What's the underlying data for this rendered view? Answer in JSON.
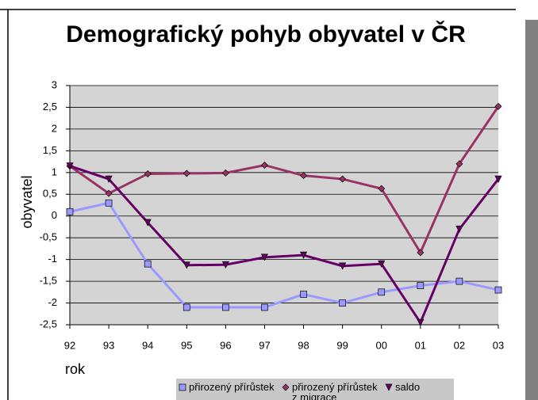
{
  "chart_data": {
    "type": "line",
    "title": "Demografický pohyb obyvatel v ČR",
    "x_label": "rok",
    "y_label": "obyvatel",
    "categories": [
      "92",
      "93",
      "94",
      "95",
      "96",
      "97",
      "98",
      "99",
      "00",
      "01",
      "02",
      "03"
    ],
    "series": [
      {
        "name": "přirozený přírůstek",
        "color": "#9999ff",
        "marker": "square",
        "values": [
          0.1,
          0.3,
          -1.1,
          -2.1,
          -2.1,
          -2.1,
          -1.8,
          -2.0,
          -1.75,
          -1.6,
          -1.5,
          -1.7
        ]
      },
      {
        "name": "přirozený přírůstek z migrace",
        "color": "#993366",
        "marker": "diamond",
        "values": [
          1.15,
          0.52,
          0.97,
          0.98,
          0.99,
          1.17,
          0.93,
          0.85,
          0.63,
          -0.84,
          1.2,
          2.52
        ]
      },
      {
        "name": "saldo",
        "color": "#660066",
        "marker": "triangle",
        "values": [
          1.15,
          0.85,
          -0.15,
          -1.13,
          -1.12,
          -0.95,
          -0.9,
          -1.15,
          -1.1,
          -2.45,
          -0.3,
          0.85
        ]
      }
    ],
    "ylim": [
      -2.5,
      3
    ],
    "yticks": [
      {
        "value": -2.5,
        "label": "-2,5"
      },
      -2,
      {
        "value": -1.5,
        "label": "-1,5"
      },
      -1,
      {
        "value": -0.5,
        "label": "-0,5"
      },
      0,
      {
        "value": 0.5,
        "label": "0,5"
      },
      1,
      {
        "value": 1.5,
        "label": "1,5"
      },
      2,
      {
        "value": 2.5,
        "label": "2,5"
      },
      3
    ],
    "grid": true
  }
}
